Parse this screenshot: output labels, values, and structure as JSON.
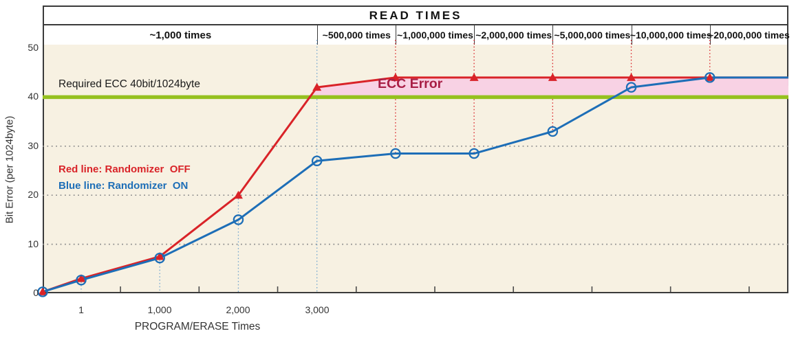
{
  "title": "READ TIMES",
  "read_times_header": {
    "columns": [
      "~1,000 times",
      "~500,000 times",
      "~1,000,000 times",
      "~2,000,000 times",
      "~5,000,000 times",
      "~10,000,000 times",
      "~20,000,000 times"
    ]
  },
  "y_axis": {
    "title": "Bit Error (per 1024byte)",
    "ticks": [
      "50",
      "40",
      "30",
      "20",
      "10",
      "0"
    ]
  },
  "x_axis": {
    "title": "PROGRAM/ERASE Times",
    "ticks": [
      "1",
      "1,000",
      "2,000",
      "3,000"
    ]
  },
  "annotations": {
    "threshold_label": "Required ECC 40bit/1024byte",
    "region_label": "ECC Error",
    "legend_red": "Red line: Randomizer  OFF",
    "legend_blue": "Blue line: Randomizer  ON"
  },
  "colors": {
    "red_line": "#d92328",
    "blue_line": "#1d6eb7",
    "green_threshold": "#95c11f",
    "pink_region": "#f8d2e4",
    "region_text": "#a81e45",
    "plot_background": "#f7f1e2"
  },
  "chart_data": {
    "type": "line",
    "title": "READ TIMES",
    "xlabel": "PROGRAM/ERASE Times",
    "ylabel": "Bit Error (per 1024byte)",
    "ylim": [
      0,
      50
    ],
    "yticks": [
      0,
      10,
      20,
      30,
      40,
      50
    ],
    "gridlines": [
      10,
      20,
      30
    ],
    "x_slots": [
      "0",
      "1",
      "1,000",
      "2,000",
      "3,000",
      "~500,000 reads",
      "~1,000,000 reads",
      "~2,000,000 reads",
      "~5,000,000 reads",
      "~10,000,000 reads",
      "~20,000,000 reads (right edge)"
    ],
    "threshold": {
      "value": 40,
      "label": "Required ECC 40bit/1024byte",
      "color": "#95c11f"
    },
    "region": {
      "label": "ECC Error",
      "fill": "#f8d2e4",
      "between": "red series and threshold 40, from x=3,000 to right edge"
    },
    "series": [
      {
        "name": "Randomizer OFF",
        "legend": "Red line: Randomizer  OFF",
        "color": "#d92328",
        "marker": "triangle",
        "values": [
          0.3,
          3,
          7.5,
          20,
          42,
          44,
          44,
          44,
          44,
          44,
          44
        ]
      },
      {
        "name": "Randomizer ON",
        "legend": "Blue line: Randomizer  ON",
        "color": "#1d6eb7",
        "marker": "circle",
        "values": [
          0.3,
          2.7,
          7.2,
          15,
          27,
          28.5,
          28.5,
          33,
          42,
          44,
          44
        ]
      }
    ],
    "legend_position": "inside plot, upper-left area",
    "grid": "dotted horizontal lines at 10/20/30"
  }
}
